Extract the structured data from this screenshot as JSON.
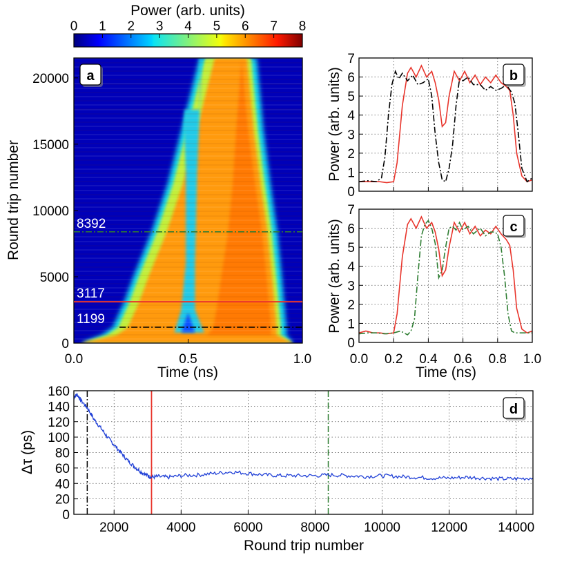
{
  "chart_data": [
    {
      "panel": "a",
      "type": "heatmap",
      "colorbar": {
        "title": "Power (arb. units)",
        "range": [
          0,
          8
        ],
        "ticks": [
          "0",
          "1",
          "2",
          "3",
          "4",
          "5",
          "6",
          "7",
          "8"
        ],
        "colormap": "jet"
      },
      "xlabel": "Time (ns)",
      "ylabel": "Round trip number",
      "xlim": [
        0,
        1
      ],
      "ylim": [
        0,
        21500
      ],
      "xticks": [
        "0.0",
        "0.5",
        "1.0"
      ],
      "yticks": [
        "0",
        "5000",
        "10000",
        "15000",
        "20000"
      ],
      "markers": [
        {
          "label": "8392",
          "y": 8392,
          "color": "#2e7d32",
          "style": "dash-dot"
        },
        {
          "label": "3117",
          "y": 3117,
          "color": "#e8342b",
          "style": "solid"
        },
        {
          "label": "1199",
          "y": 1199,
          "color": "#000000",
          "style": "dash-dot"
        }
      ],
      "pulse_edges": {
        "round_trip": [
          600,
          1199,
          3117,
          5000,
          8392,
          12000,
          16000,
          21500
        ],
        "leading_edge_ns": [
          0.12,
          0.17,
          0.22,
          0.26,
          0.34,
          0.41,
          0.47,
          0.55
        ],
        "trailing_edge_ns": [
          0.93,
          0.93,
          0.92,
          0.91,
          0.89,
          0.86,
          0.83,
          0.8
        ]
      }
    },
    {
      "panel": "b",
      "type": "line",
      "xlabel": "",
      "ylabel": "Power (arb. units)",
      "xlim": [
        0,
        1
      ],
      "ylim": [
        0,
        7
      ],
      "yticks": [
        "0",
        "1",
        "2",
        "3",
        "4",
        "5",
        "6",
        "7"
      ],
      "grid": true,
      "series": [
        {
          "color": "#e8342b",
          "style": "solid",
          "x": [
            0.0,
            0.04,
            0.08,
            0.12,
            0.16,
            0.2,
            0.22,
            0.25,
            0.28,
            0.3,
            0.33,
            0.36,
            0.39,
            0.42,
            0.44,
            0.46,
            0.48,
            0.5,
            0.52,
            0.55,
            0.58,
            0.61,
            0.64,
            0.67,
            0.7,
            0.73,
            0.76,
            0.79,
            0.82,
            0.85,
            0.87,
            0.89,
            0.91,
            0.94,
            0.97,
            1.0
          ],
          "y": [
            0.5,
            0.5,
            0.5,
            0.5,
            0.45,
            0.5,
            1.5,
            4.5,
            6.2,
            6.5,
            6.0,
            6.6,
            6.0,
            6.3,
            5.7,
            4.8,
            3.4,
            3.6,
            5.0,
            6.3,
            5.8,
            6.3,
            5.7,
            6.1,
            5.6,
            6.0,
            5.7,
            6.1,
            5.7,
            5.5,
            5.3,
            4.0,
            2.0,
            0.8,
            0.5,
            0.6
          ]
        },
        {
          "color": "#000000",
          "style": "dash-dot",
          "x": [
            0.0,
            0.05,
            0.1,
            0.13,
            0.15,
            0.17,
            0.19,
            0.21,
            0.23,
            0.25,
            0.28,
            0.31,
            0.34,
            0.37,
            0.4,
            0.42,
            0.44,
            0.46,
            0.48,
            0.5,
            0.52,
            0.54,
            0.56,
            0.58,
            0.6,
            0.63,
            0.66,
            0.7,
            0.73,
            0.76,
            0.79,
            0.82,
            0.85,
            0.88,
            0.9,
            0.92,
            0.94,
            0.97,
            1.0
          ],
          "y": [
            0.5,
            0.55,
            0.5,
            0.7,
            1.8,
            4.0,
            5.6,
            6.3,
            5.9,
            6.2,
            5.8,
            6.1,
            5.6,
            5.7,
            5.9,
            5.0,
            3.0,
            1.5,
            0.6,
            0.5,
            1.2,
            2.4,
            4.5,
            5.9,
            5.8,
            6.0,
            5.6,
            5.6,
            5.3,
            5.5,
            5.3,
            5.4,
            5.6,
            5.2,
            4.6,
            3.0,
            1.2,
            0.5,
            0.7
          ]
        }
      ]
    },
    {
      "panel": "c",
      "type": "line",
      "xlabel": "Time (ns)",
      "ylabel": "Power (arb. units)",
      "xlim": [
        0,
        1
      ],
      "ylim": [
        0,
        7
      ],
      "xticks": [
        "0.0",
        "0.2",
        "0.4",
        "0.6",
        "0.8",
        "1.0"
      ],
      "yticks": [
        "0",
        "1",
        "2",
        "3",
        "4",
        "5",
        "6",
        "7"
      ],
      "grid": true,
      "series": [
        {
          "color": "#e8342b",
          "style": "solid",
          "x": [
            0.0,
            0.04,
            0.08,
            0.12,
            0.16,
            0.2,
            0.22,
            0.25,
            0.28,
            0.3,
            0.33,
            0.36,
            0.39,
            0.42,
            0.44,
            0.46,
            0.48,
            0.5,
            0.52,
            0.55,
            0.58,
            0.61,
            0.64,
            0.67,
            0.7,
            0.73,
            0.76,
            0.79,
            0.82,
            0.85,
            0.87,
            0.89,
            0.91,
            0.94,
            0.97,
            1.0
          ],
          "y": [
            0.5,
            0.6,
            0.5,
            0.5,
            0.45,
            0.5,
            1.5,
            4.5,
            6.2,
            6.5,
            6.0,
            6.6,
            6.0,
            6.3,
            5.8,
            4.9,
            3.5,
            3.8,
            5.0,
            6.3,
            5.8,
            6.3,
            5.7,
            6.1,
            5.6,
            5.9,
            5.7,
            6.1,
            5.7,
            5.4,
            5.1,
            3.8,
            1.8,
            0.7,
            0.5,
            0.6
          ]
        },
        {
          "color": "#2e7d32",
          "style": "dash-dot",
          "x": [
            0.0,
            0.05,
            0.1,
            0.15,
            0.2,
            0.24,
            0.28,
            0.3,
            0.32,
            0.34,
            0.36,
            0.38,
            0.4,
            0.42,
            0.44,
            0.46,
            0.48,
            0.5,
            0.52,
            0.54,
            0.56,
            0.58,
            0.6,
            0.63,
            0.66,
            0.7,
            0.73,
            0.76,
            0.78,
            0.8,
            0.82,
            0.84,
            0.86,
            0.88,
            0.9,
            0.93,
            0.96,
            1.0
          ],
          "y": [
            0.45,
            0.5,
            0.5,
            0.45,
            0.5,
            0.6,
            0.4,
            0.6,
            1.2,
            3.5,
            5.6,
            6.2,
            6.4,
            6.0,
            5.2,
            3.4,
            3.8,
            5.0,
            6.0,
            6.1,
            5.9,
            6.3,
            5.9,
            6.1,
            5.7,
            6.0,
            5.6,
            5.8,
            5.8,
            5.7,
            5.0,
            3.5,
            1.5,
            0.6,
            0.5,
            0.5,
            0.5,
            0.5
          ]
        }
      ]
    },
    {
      "panel": "d",
      "type": "line",
      "xlabel": "Round trip number",
      "ylabel": "Δτ (ps)",
      "xlim": [
        800,
        14500
      ],
      "ylim": [
        0,
        160
      ],
      "xticks": [
        "2000",
        "4000",
        "6000",
        "8000",
        "10000",
        "12000",
        "14000"
      ],
      "yticks": [
        "0",
        "20",
        "40",
        "60",
        "80",
        "100",
        "120",
        "140",
        "160"
      ],
      "grid": true,
      "markers": [
        {
          "x": 1199,
          "color": "#000000",
          "style": "dash-dot"
        },
        {
          "x": 3117,
          "color": "#e8342b",
          "style": "solid"
        },
        {
          "x": 8392,
          "color": "#2e7d32",
          "style": "dash-dot"
        }
      ],
      "series": [
        {
          "color": "#1f3fd6",
          "style": "solid",
          "x": [
            800,
            900,
            1000,
            1200,
            1400,
            1600,
            1800,
            2000,
            2200,
            2400,
            2600,
            2800,
            3000,
            3100,
            3300,
            3600,
            4000,
            4500,
            5000,
            5500,
            6000,
            6500,
            7000,
            7500,
            8000,
            8500,
            9000,
            9500,
            10000,
            10500,
            11000,
            11500,
            12000,
            12500,
            13000,
            13500,
            14000,
            14500
          ],
          "y": [
            152,
            155,
            148,
            138,
            123,
            112,
            100,
            90,
            80,
            70,
            62,
            55,
            50,
            48,
            49,
            48,
            50,
            51,
            53,
            55,
            53,
            51,
            50,
            50,
            50,
            51,
            50,
            49,
            50,
            49,
            48,
            47,
            47,
            48,
            47,
            46,
            46,
            47
          ]
        }
      ]
    }
  ],
  "panel_labels": {
    "a": "a",
    "b": "b",
    "c": "c",
    "d": "d"
  }
}
